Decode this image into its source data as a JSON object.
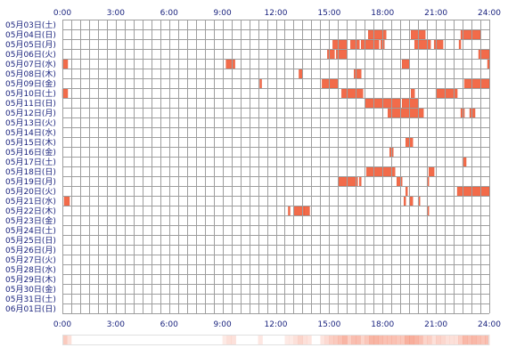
{
  "chart_data": {
    "type": "heatmap",
    "x_ticks": [
      "0:00",
      "3:00",
      "6:00",
      "9:00",
      "12:00",
      "15:00",
      "18:00",
      "21:00",
      "24:00"
    ],
    "x_range_hours": [
      0,
      24
    ],
    "grid": true,
    "colors": {
      "bar": "#f26b4a",
      "bar_edge": "#e25533",
      "grid": "#9e9e9e",
      "label": "#1a237e"
    },
    "rows": [
      {
        "label": "05月03日(土)",
        "segments": []
      },
      {
        "label": "05月04日(日)",
        "segments": [
          [
            17.2,
            18.2
          ],
          [
            19.6,
            20.4
          ],
          [
            22.4,
            23.5
          ]
        ]
      },
      {
        "label": "05月05日(月)",
        "segments": [
          [
            15.2,
            16.0
          ],
          [
            16.2,
            16.7
          ],
          [
            16.8,
            17.8
          ],
          [
            17.9,
            18.1
          ],
          [
            19.8,
            20.7
          ],
          [
            20.9,
            21.4
          ],
          [
            22.3,
            22.4
          ]
        ]
      },
      {
        "label": "05月06日(火)",
        "segments": [
          [
            14.9,
            15.3
          ],
          [
            15.4,
            16.0
          ],
          [
            23.4,
            24.0
          ]
        ]
      },
      {
        "label": "05月07日(水)",
        "segments": [
          [
            0.0,
            0.3
          ],
          [
            9.2,
            9.7
          ],
          [
            19.1,
            19.5
          ],
          [
            23.9,
            24.0
          ]
        ]
      },
      {
        "label": "05月08日(木)",
        "segments": [
          [
            13.3,
            13.5
          ],
          [
            16.4,
            16.8
          ]
        ]
      },
      {
        "label": "05月09日(金)",
        "segments": [
          [
            11.1,
            11.2
          ],
          [
            14.6,
            15.5
          ],
          [
            22.6,
            24.0
          ]
        ]
      },
      {
        "label": "05月10日(土)",
        "segments": [
          [
            0.0,
            0.3
          ],
          [
            15.7,
            16.9
          ],
          [
            19.6,
            19.8
          ],
          [
            21.0,
            22.2
          ]
        ]
      },
      {
        "label": "05月11日(日)",
        "segments": [
          [
            17.0,
            19.0
          ],
          [
            19.1,
            20.0
          ]
        ]
      },
      {
        "label": "05月12日(月)",
        "segments": [
          [
            18.3,
            20.3
          ],
          [
            22.4,
            22.6
          ],
          [
            22.9,
            23.2
          ]
        ]
      },
      {
        "label": "05月13日(火)",
        "segments": []
      },
      {
        "label": "05月14日(水)",
        "segments": []
      },
      {
        "label": "05月15日(木)",
        "segments": [
          [
            19.3,
            19.7
          ]
        ]
      },
      {
        "label": "05月16日(金)",
        "segments": [
          [
            18.4,
            18.6
          ]
        ]
      },
      {
        "label": "05月17日(土)",
        "segments": [
          [
            22.5,
            22.7
          ]
        ]
      },
      {
        "label": "05月18日(日)",
        "segments": [
          [
            17.1,
            18.7
          ],
          [
            20.6,
            20.9
          ]
        ]
      },
      {
        "label": "05月19日(月)",
        "segments": [
          [
            15.5,
            16.6
          ],
          [
            16.7,
            16.8
          ],
          [
            18.8,
            19.1
          ],
          [
            20.5,
            20.6
          ]
        ]
      },
      {
        "label": "05月20日(火)",
        "segments": [
          [
            19.3,
            19.4
          ],
          [
            22.2,
            24.0
          ]
        ]
      },
      {
        "label": "05月21日(水)",
        "segments": [
          [
            0.1,
            0.4
          ],
          [
            19.2,
            19.3
          ],
          [
            19.5,
            19.7
          ],
          [
            20.0,
            20.1
          ]
        ]
      },
      {
        "label": "05月22日(木)",
        "segments": [
          [
            12.7,
            12.8
          ],
          [
            13.0,
            13.6
          ],
          [
            13.6,
            13.9
          ],
          [
            20.5,
            20.6
          ]
        ]
      },
      {
        "label": "05月23日(金)",
        "segments": []
      },
      {
        "label": "05月24日(土)",
        "segments": []
      },
      {
        "label": "05月25日(日)",
        "segments": []
      },
      {
        "label": "05月26日(月)",
        "segments": []
      },
      {
        "label": "05月27日(火)",
        "segments": []
      },
      {
        "label": "05月28日(水)",
        "segments": []
      },
      {
        "label": "05月29日(木)",
        "segments": []
      },
      {
        "label": "05月30日(金)",
        "segments": []
      },
      {
        "label": "05月31日(土)",
        "segments": []
      },
      {
        "label": "06月01日(日)",
        "segments": []
      }
    ]
  }
}
